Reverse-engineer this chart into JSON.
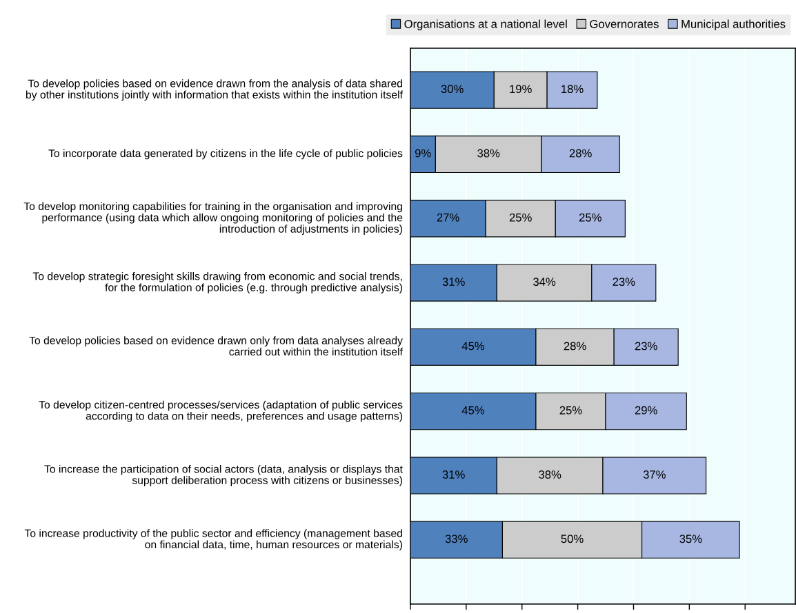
{
  "chart_data": {
    "type": "bar",
    "orientation": "horizontal",
    "stacked": true,
    "legend": "top right",
    "grid": "x",
    "tick_labels": "y",
    "categories": [
      "To develop policies based on evidence drawn from the analysis of data shared\nby other institutions jointly with information that exists within the institution itself",
      "To incorporate data generated by citizens in the life cycle of public policies",
      "To develop monitoring capabilities for training in the organisation and improving\nperformance (using data which allow ongoing monitoring of policies and the\nintroduction of adjustments in policies)",
      "To develop strategic foresight skills drawing from economic and social trends,\nfor the formulation of policies (e.g. through predictive analysis)",
      "To develop policies based on evidence drawn only from data analyses already\ncarried out within the institution itself",
      "To develop citizen-centred processes/services (adaptation of public services\naccording to data on their needs, preferences and usage patterns)",
      "To increase the participation of social actors (data, analysis or displays that\nsupport deliberation process with citizens or businesses)",
      "To increase productivity of the public sector and efficiency (management based\non financial data, time, human resources or materials)"
    ],
    "xlim": [
      0,
      138
    ],
    "xticks": [
      {
        "value": 0,
        "label": null
      },
      {
        "value": 20,
        "label": null
      },
      {
        "value": 40,
        "label": null
      },
      {
        "value": 60,
        "label": null
      },
      {
        "value": 80,
        "label": null
      },
      {
        "value": 100,
        "label": null
      },
      {
        "value": 120,
        "label": null
      }
    ],
    "series": [
      {
        "name": "Organisations at a national level",
        "color": "#4f81bd",
        "values": [
          30,
          9,
          27,
          31,
          45,
          45,
          31,
          33
        ],
        "value_labels": [
          "30%",
          "9%",
          "27%",
          "31%",
          "45%",
          "45%",
          "31%",
          "33%"
        ]
      },
      {
        "name": "Governorates",
        "color": "#cccccc",
        "values": [
          19,
          38,
          25,
          34,
          28,
          25,
          38,
          50
        ],
        "value_labels": [
          "19%",
          "38%",
          "25%",
          "34%",
          "28%",
          "25%",
          "38%",
          "50%"
        ]
      },
      {
        "name": "Municipal authorities",
        "color": "#a7b7e2",
        "values": [
          18,
          28,
          25,
          23,
          23,
          29,
          37,
          35
        ],
        "value_labels": [
          "18%",
          "28%",
          "25%",
          "23%",
          "23%",
          "29%",
          "37%",
          "35%"
        ]
      }
    ]
  }
}
